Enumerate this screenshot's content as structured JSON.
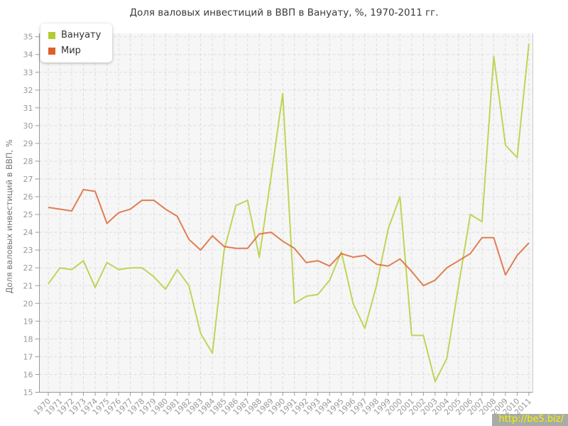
{
  "title": "Доля валовых инвестиций в ВВП в Вануату, %, 1970-2011 гг.",
  "watermark": {
    "text": "http://be5.biz/",
    "bg": "rgba(154,158,150,0.85)",
    "color": "#f5f200"
  },
  "styles": {
    "page_bg": "#ffffff",
    "plot_bg": "#f6f6f6",
    "grid": "#dddddd",
    "axis": "#9a9a9a",
    "plot_right_border": "#cccccc",
    "tick_label": "#999999",
    "title_color": "#3a3a3a",
    "ylabel_color": "#777777",
    "legend_text": "#333333"
  },
  "chart_data": {
    "type": "line",
    "title": "Доля валовых инвестиций в ВВП в Вануату, %, 1970-2011 гг.",
    "xlabel": "",
    "ylabel": "Доля валовых инвестиций в ВВП, %",
    "ylim": [
      15,
      35
    ],
    "ytick_step": 1,
    "grid": true,
    "legend_position": "top-left",
    "x": [
      1970,
      1971,
      1972,
      1973,
      1974,
      1975,
      1976,
      1977,
      1978,
      1979,
      1980,
      1981,
      1982,
      1983,
      1984,
      1985,
      1986,
      1987,
      1988,
      1989,
      1990,
      1991,
      1992,
      1993,
      1994,
      1995,
      1996,
      1997,
      1998,
      1999,
      2000,
      2001,
      2002,
      2003,
      2004,
      2005,
      2006,
      2007,
      2008,
      2009,
      2010,
      2011
    ],
    "series": [
      {
        "id": "vanuatu",
        "name": "Вануату",
        "color": "#b5cb31",
        "values": [
          21.1,
          22.0,
          21.9,
          22.4,
          20.9,
          22.3,
          21.9,
          22.0,
          22.0,
          21.5,
          20.8,
          21.9,
          21.0,
          18.3,
          17.2,
          23.0,
          25.5,
          25.8,
          22.6,
          27.1,
          31.8,
          20.0,
          20.4,
          20.5,
          21.3,
          22.9,
          20.0,
          18.6,
          21.0,
          24.2,
          26.0,
          18.2,
          18.2,
          15.6,
          16.9,
          21.0,
          25.0,
          24.6,
          33.9,
          28.9,
          28.2,
          34.6
        ]
      },
      {
        "id": "world",
        "name": "Мир",
        "color": "#dd5f29",
        "values": [
          25.4,
          25.3,
          25.2,
          26.4,
          26.3,
          24.5,
          25.1,
          25.3,
          25.8,
          25.8,
          25.3,
          24.9,
          23.6,
          23.0,
          23.8,
          23.2,
          23.1,
          23.1,
          23.9,
          24.0,
          23.5,
          23.1,
          22.3,
          22.4,
          22.1,
          22.8,
          22.6,
          22.7,
          22.2,
          22.1,
          22.5,
          21.8,
          21.0,
          21.3,
          22.0,
          22.4,
          22.8,
          23.7,
          23.7,
          21.6,
          22.7,
          23.4
        ]
      }
    ]
  }
}
